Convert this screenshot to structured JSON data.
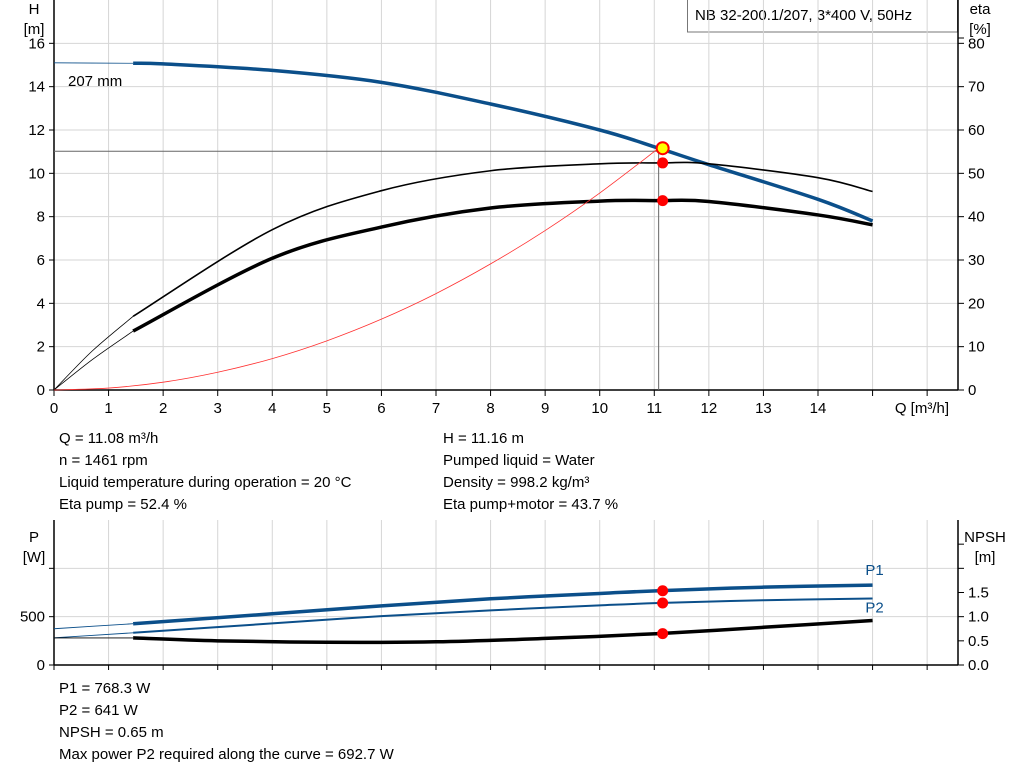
{
  "title_box": "NB 32-200.1/207, 3*400 V, 50Hz",
  "chart_data": [
    {
      "type": "line",
      "name": "head-efficiency",
      "left_axis": {
        "label": "H",
        "unit": "[m]",
        "range": [
          0,
          18
        ],
        "ticks": [
          0,
          2,
          4,
          6,
          8,
          10,
          12,
          14,
          16
        ]
      },
      "right_axis": {
        "label": "eta",
        "unit": "[%]",
        "range": [
          0,
          90
        ],
        "ticks": [
          0,
          10,
          20,
          30,
          40,
          50,
          60,
          70,
          80
        ]
      },
      "x_axis": {
        "label": "Q [m³/h]",
        "range": [
          0,
          16.55
        ],
        "ticks": [
          0,
          1,
          2,
          3,
          4,
          5,
          6,
          7,
          8,
          9,
          10,
          11,
          12,
          13,
          14
        ]
      },
      "grid": true,
      "curve_label": "207 mm",
      "series": [
        {
          "key": "H",
          "axis": "left",
          "color": "#0b4f8a",
          "x": [
            1.45,
            2,
            4,
            6,
            8,
            10,
            11.08,
            12,
            14,
            15
          ],
          "y": [
            15.08,
            15.05,
            14.75,
            14.2,
            13.2,
            12.0,
            11.16,
            10.4,
            8.8,
            7.8
          ],
          "extension": {
            "x": [
              0,
              1.45
            ],
            "y": [
              15.1,
              15.08
            ]
          }
        },
        {
          "key": "eta_pump",
          "axis": "right",
          "color": "#000000",
          "x": [
            1.45,
            4,
            6,
            8,
            10,
            11.08,
            12,
            14,
            15
          ],
          "y": [
            17.0,
            37.0,
            46.0,
            50.6,
            52.2,
            52.4,
            52.2,
            49.0,
            45.8
          ],
          "extension": {
            "x": [
              0,
              0.7,
              1.45
            ],
            "y": [
              0,
              9,
              17.0
            ]
          }
        },
        {
          "key": "eta_pump_motor",
          "axis": "right",
          "color": "#000000",
          "x": [
            1.45,
            4,
            6,
            8,
            10,
            11.08,
            12,
            14,
            15
          ],
          "y": [
            13.6,
            30.4,
            37.6,
            42.0,
            43.6,
            43.7,
            43.5,
            40.4,
            38.1
          ],
          "extension": {
            "x": [
              0,
              0.7,
              1.45
            ],
            "y": [
              0,
              7,
              13.6
            ]
          }
        },
        {
          "key": "system_curve",
          "axis": "left",
          "color": "#ff3030",
          "x": [
            0,
            1,
            2,
            3,
            4,
            5,
            6,
            7,
            8,
            9,
            10,
            11.08
          ],
          "y": [
            0,
            0.09,
            0.36,
            0.82,
            1.45,
            2.27,
            3.27,
            4.45,
            5.82,
            7.36,
            9.09,
            11.16
          ]
        }
      ],
      "operating_point": {
        "Q": 11.08,
        "H": 11.16,
        "eta_pump": 52.4,
        "eta_pump_motor": 43.7
      }
    },
    {
      "type": "line",
      "name": "power-npsh",
      "left_axis": {
        "label": "P",
        "unit": "[W]",
        "range": [
          0,
          1500
        ],
        "ticks": [
          0,
          500,
          1000
        ],
        "tick_labels": [
          "0",
          "500",
          ""
        ]
      },
      "right_axis": {
        "label": "NPSH",
        "unit": "[m]",
        "range": [
          0,
          3
        ],
        "ticks": [
          0,
          0.5,
          1.0,
          1.5,
          2.0,
          2.5
        ],
        "tick_labels": [
          "0.0",
          "0.5",
          "1.0",
          "1.5",
          "",
          ""
        ]
      },
      "x_axis": {
        "range": [
          0,
          16.55
        ]
      },
      "grid": true,
      "series": [
        {
          "key": "P1",
          "name": "P1",
          "axis": "left",
          "color": "#0b4f8a",
          "x": [
            1.45,
            4,
            6,
            8,
            10,
            11.08,
            13,
            15
          ],
          "y": [
            427,
            530,
            612,
            685,
            740,
            768.3,
            805,
            826
          ],
          "extension": {
            "x": [
              0,
              1.45
            ],
            "y": [
              375,
              427
            ]
          }
        },
        {
          "key": "P2",
          "name": "P2",
          "axis": "left",
          "color": "#0b4f8a",
          "x": [
            1.45,
            4,
            6,
            8,
            10,
            11.08,
            13,
            15
          ],
          "y": [
            333,
            430,
            505,
            565,
            617,
            641,
            670,
            688
          ],
          "extension": {
            "x": [
              0,
              1.45
            ],
            "y": [
              281,
              333
            ]
          }
        },
        {
          "key": "NPSH",
          "axis": "right",
          "color": "#000000",
          "x": [
            1.45,
            3,
            5,
            7,
            9,
            11.08,
            13,
            15
          ],
          "y": [
            0.56,
            0.5,
            0.47,
            0.48,
            0.55,
            0.65,
            0.78,
            0.92
          ],
          "extension": {
            "x": [
              0,
              1.45
            ],
            "y": [
              0.56,
              0.56
            ]
          }
        }
      ],
      "operating_point": {
        "Q": 11.08,
        "P1": 768.3,
        "P2": 641,
        "NPSH": 0.65
      }
    }
  ],
  "info_top_left": [
    "Q = 11.08 m³/h",
    "n = 1461 rpm",
    "Liquid temperature during operation = 20 °C",
    "Eta pump = 52.4 %"
  ],
  "info_top_right": [
    "H = 11.16 m",
    "Pumped liquid = Water",
    "Density = 998.2 kg/m³",
    "Eta pump+motor = 43.7 %"
  ],
  "info_bottom": [
    "P1 = 768.3 W",
    "P2 = 641 W",
    "NPSH = 0.65 m",
    "Max power P2 required along the curve = 692.7 W"
  ]
}
